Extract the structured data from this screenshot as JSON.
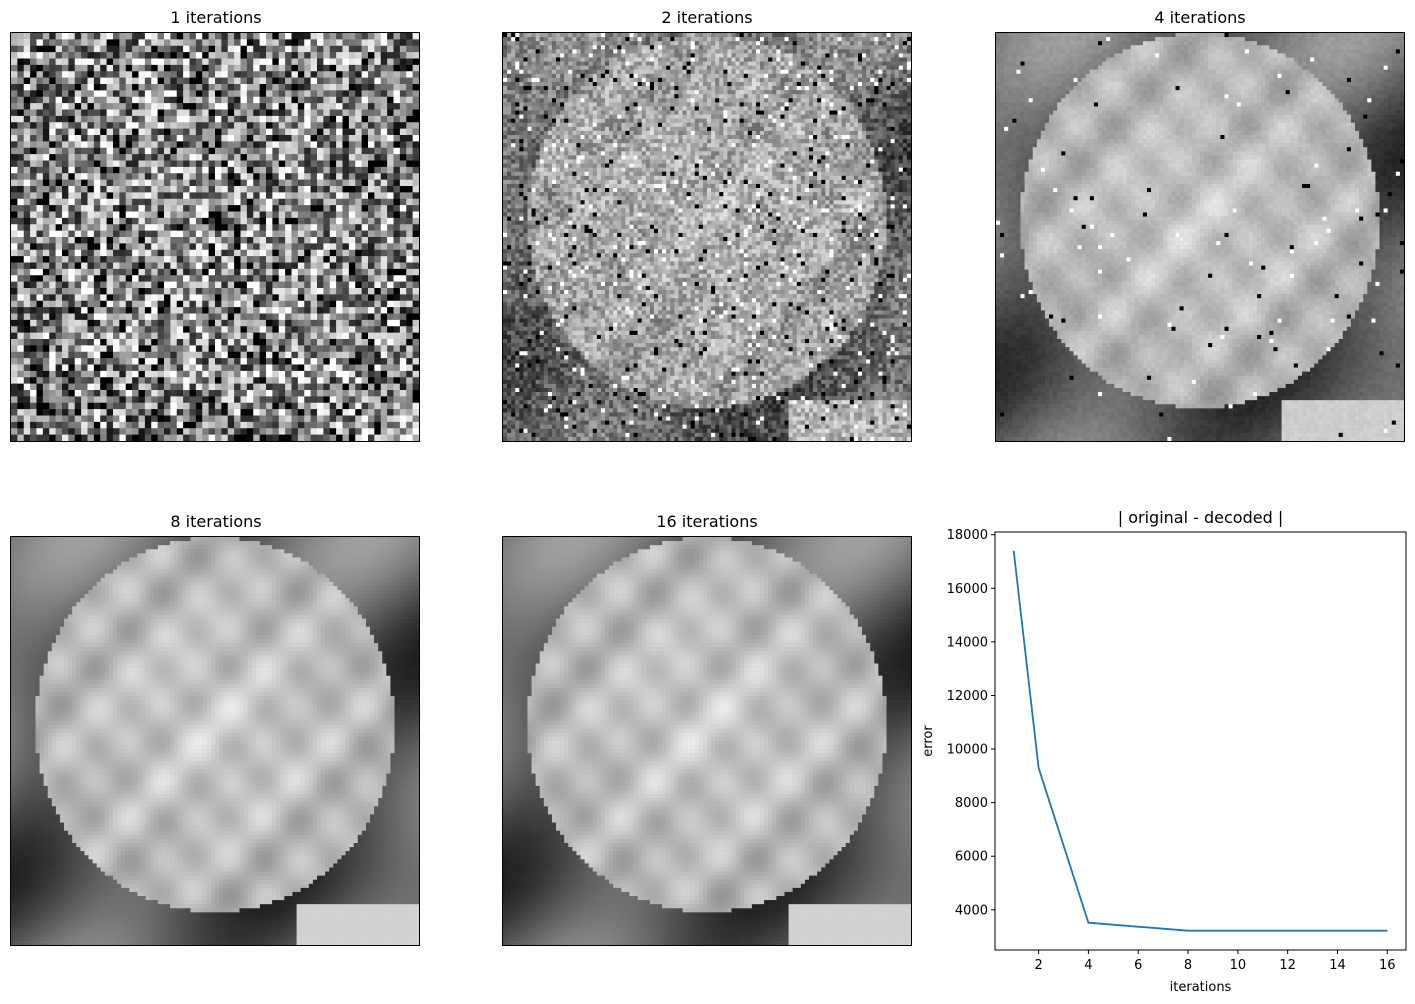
{
  "panels": [
    {
      "title": "1 iterations",
      "iterations": 1
    },
    {
      "title": "2 iterations",
      "iterations": 2
    },
    {
      "title": "4 iterations",
      "iterations": 4
    },
    {
      "title": "8 iterations",
      "iterations": 8
    },
    {
      "title": "16 iterations",
      "iterations": 16
    }
  ],
  "image_subject": "cauliflower",
  "chart_data": {
    "type": "line",
    "title": "| original - decoded |",
    "xlabel": "iterations",
    "ylabel": "error",
    "xlim": [
      0.25,
      16.75
    ],
    "ylim": [
      2500,
      18100
    ],
    "xticks": [
      2,
      4,
      6,
      8,
      10,
      12,
      14,
      16
    ],
    "yticks": [
      4000,
      6000,
      8000,
      10000,
      12000,
      14000,
      16000,
      18000
    ],
    "grid": false,
    "series": [
      {
        "x": [
          1,
          2,
          4,
          8,
          16
        ],
        "y": [
          17400,
          9300,
          3520,
          3220,
          3220
        ],
        "color": "#1f77b4"
      }
    ]
  }
}
